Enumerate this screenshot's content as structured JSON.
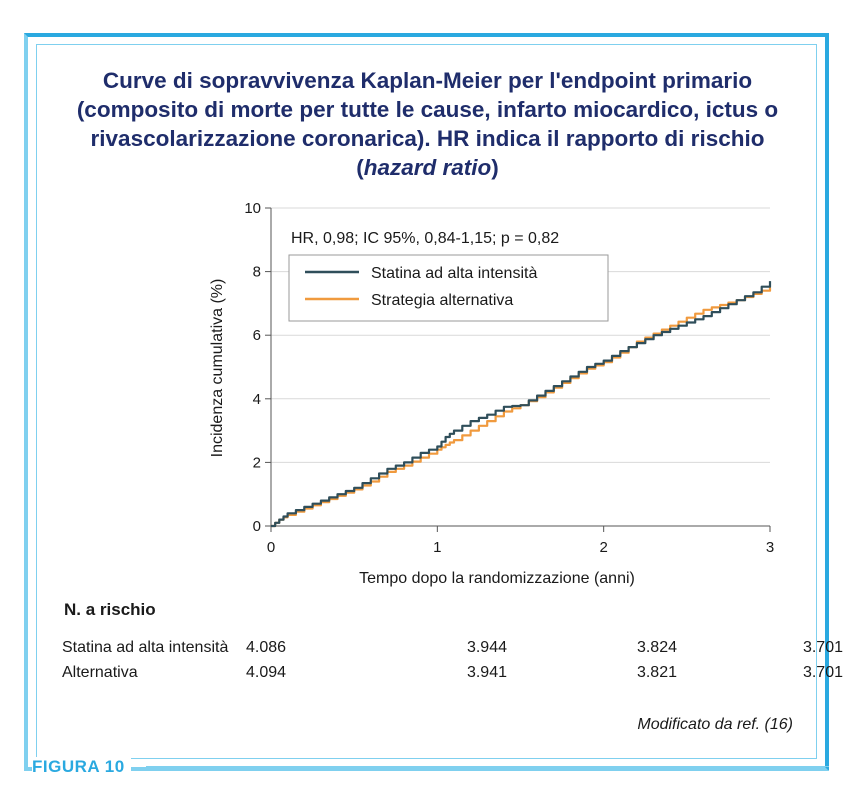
{
  "figure": {
    "title_main": "Curve di sopravvivenza Kaplan-Meier per l'endpoint primario (composito di morte per tutte le cause, infarto miocardico, ictus o rivascolarizzazione coronarica). HR indica il rapporto di rischio (",
    "title_italic": "hazard ratio",
    "title_end": ")",
    "label": "FIGURA 10",
    "source": "Modificato da ref. (16)"
  },
  "chart_data": {
    "type": "line",
    "xlabel": "Tempo dopo la randomizzazione (anni)",
    "ylabel": "Incidenza cumulativa (%)",
    "xlim": [
      0,
      3
    ],
    "ylim": [
      0,
      10
    ],
    "xticks": [
      0,
      1,
      2,
      3
    ],
    "yticks": [
      0,
      2,
      4,
      6,
      8,
      10
    ],
    "grid": "horizontal",
    "annotation": "HR, 0,98; IC 95%, 0,84-1,15; p = 0,82",
    "legend_position": "top-left",
    "series": [
      {
        "name": "Statina ad alta intensità",
        "color": "#2f4e5a",
        "x": [
          0,
          0.05,
          0.1,
          0.2,
          0.3,
          0.4,
          0.5,
          0.6,
          0.7,
          0.8,
          0.9,
          1.0,
          1.05,
          1.1,
          1.2,
          1.3,
          1.4,
          1.5,
          1.6,
          1.7,
          1.8,
          1.9,
          2.0,
          2.1,
          2.2,
          2.3,
          2.4,
          2.5,
          2.6,
          2.7,
          2.8,
          2.9,
          3.0
        ],
        "y": [
          0,
          0.2,
          0.4,
          0.6,
          0.8,
          1.0,
          1.2,
          1.5,
          1.8,
          2.0,
          2.3,
          2.5,
          2.8,
          3.0,
          3.3,
          3.5,
          3.75,
          3.8,
          4.1,
          4.4,
          4.7,
          5.0,
          5.2,
          5.5,
          5.75,
          6.0,
          6.2,
          6.4,
          6.6,
          6.85,
          7.1,
          7.35,
          7.7
        ]
      },
      {
        "name": "Strategia alternativa",
        "color": "#f09a3e",
        "x": [
          0,
          0.05,
          0.1,
          0.2,
          0.3,
          0.4,
          0.5,
          0.6,
          0.7,
          0.8,
          0.9,
          1.0,
          1.05,
          1.1,
          1.2,
          1.3,
          1.4,
          1.5,
          1.6,
          1.7,
          1.8,
          1.9,
          2.0,
          2.1,
          2.2,
          2.3,
          2.4,
          2.5,
          2.6,
          2.7,
          2.8,
          2.9,
          3.0
        ],
        "y": [
          0,
          0.2,
          0.35,
          0.55,
          0.75,
          0.95,
          1.15,
          1.4,
          1.7,
          1.9,
          2.15,
          2.4,
          2.55,
          2.7,
          3.0,
          3.3,
          3.6,
          3.8,
          4.05,
          4.35,
          4.65,
          4.95,
          5.15,
          5.45,
          5.8,
          6.05,
          6.3,
          6.55,
          6.8,
          6.95,
          7.1,
          7.3,
          7.5
        ]
      }
    ]
  },
  "risk_table": {
    "heading": "N. a rischio",
    "rows": [
      {
        "label": "Statina ad alta intensità",
        "values": [
          "4.086",
          "3.944",
          "3.824",
          "3.701"
        ]
      },
      {
        "label": "Alternativa",
        "values": [
          "4.094",
          "3.941",
          "3.821",
          "3.701"
        ]
      }
    ]
  }
}
